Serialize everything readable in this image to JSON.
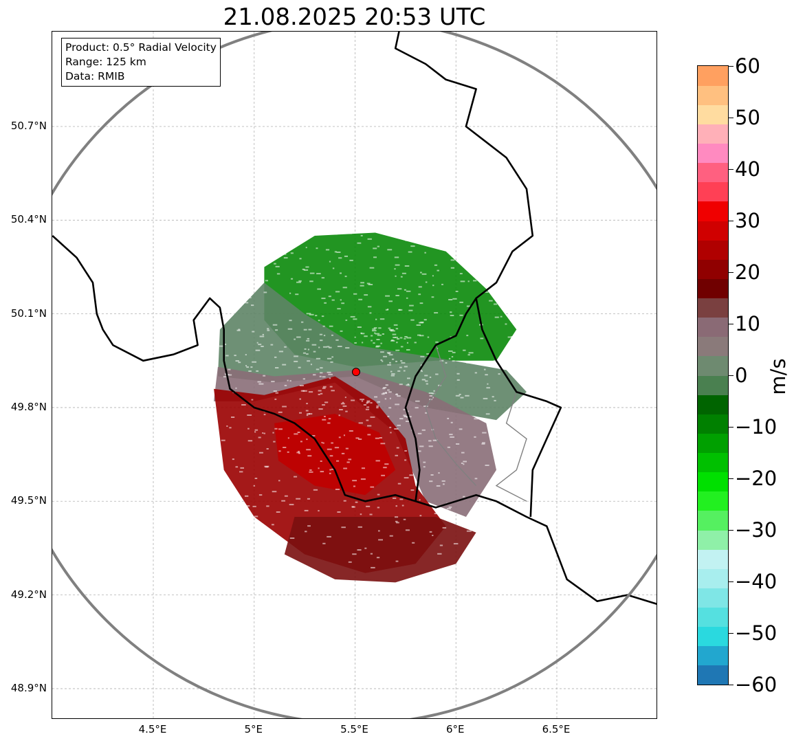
{
  "map": {
    "title": "21.08.2025 20:53 UTC",
    "info": {
      "product": "Product: 0.5° Radial Velocity",
      "range": "Range: 125 km",
      "data": "Data: RMIB"
    },
    "radar_site": {
      "lon": 5.505,
      "lat": 49.914
    },
    "range_ring_km": 125,
    "extent": {
      "lon_min": 4.0,
      "lon_max": 7.0,
      "lat_min": 48.8,
      "lat_max": 51.1
    },
    "lat_ticks": [
      {
        "value": 50.7,
        "label": "50.7°N"
      },
      {
        "value": 50.4,
        "label": "50.4°N"
      },
      {
        "value": 50.1,
        "label": "50.1°N"
      },
      {
        "value": 49.8,
        "label": "49.8°N"
      },
      {
        "value": 49.5,
        "label": "49.5°N"
      },
      {
        "value": 49.2,
        "label": "49.2°N"
      },
      {
        "value": 48.9,
        "label": "48.9°N"
      }
    ],
    "lon_ticks": [
      {
        "value": 4.5,
        "label": "4.5°E"
      },
      {
        "value": 5.0,
        "label": "5°E"
      },
      {
        "value": 5.5,
        "label": "5.5°E"
      },
      {
        "value": 6.0,
        "label": "6°E"
      },
      {
        "value": 6.5,
        "label": "6.5°E"
      }
    ],
    "colors": {
      "ring": "#808080",
      "border": "#000000",
      "province_border": "#808080",
      "grid": "#b0b0b0",
      "site_marker": "#ff0000"
    },
    "colorbar": {
      "unit": "m/s",
      "min": -60,
      "max": 60,
      "ticks": [
        {
          "value": 60,
          "label": "60"
        },
        {
          "value": 50,
          "label": "50"
        },
        {
          "value": 40,
          "label": "40"
        },
        {
          "value": 30,
          "label": "30"
        },
        {
          "value": 20,
          "label": "20"
        },
        {
          "value": 10,
          "label": "10"
        },
        {
          "value": 0,
          "label": "0"
        },
        {
          "value": -10,
          "label": "−10"
        },
        {
          "value": -20,
          "label": "−20"
        },
        {
          "value": -30,
          "label": "−30"
        },
        {
          "value": -40,
          "label": "−40"
        },
        {
          "value": -50,
          "label": "−50"
        },
        {
          "value": -60,
          "label": "−60"
        }
      ],
      "stops": [
        "#1f77b4",
        "#22a7cf",
        "#2ad9df",
        "#55e0e0",
        "#7fe6e6",
        "#a8eeee",
        "#c2f2f2",
        "#8ff0a8",
        "#55f060",
        "#22f020",
        "#00e000",
        "#00c000",
        "#00a000",
        "#008000",
        "#006400",
        "#4a8050",
        "#6e8a70",
        "#8a7a7a",
        "#8a6a75",
        "#7a4040",
        "#700000",
        "#900000",
        "#b00000",
        "#d00000",
        "#f00000",
        "#ff4055",
        "#ff6080",
        "#ff8ac0",
        "#ffb0b8",
        "#ffdca0",
        "#ffc080",
        "#ffa060"
      ]
    },
    "echo_regions": [
      {
        "name": "inbound-north",
        "velocity": -12,
        "color": "#0a8a0a",
        "polygon": [
          [
            5.05,
            50.25
          ],
          [
            5.3,
            50.35
          ],
          [
            5.6,
            50.36
          ],
          [
            5.95,
            50.3
          ],
          [
            6.15,
            50.18
          ],
          [
            6.3,
            50.05
          ],
          [
            6.2,
            49.95
          ],
          [
            5.9,
            49.95
          ],
          [
            5.5,
            49.93
          ],
          [
            5.2,
            49.97
          ],
          [
            5.05,
            50.08
          ]
        ]
      },
      {
        "name": "near-zero-band",
        "velocity": -2,
        "color": "#5e8466",
        "polygon": [
          [
            4.83,
            50.05
          ],
          [
            5.05,
            50.2
          ],
          [
            5.25,
            50.1
          ],
          [
            5.5,
            50.0
          ],
          [
            5.9,
            49.96
          ],
          [
            6.25,
            49.92
          ],
          [
            6.35,
            49.85
          ],
          [
            6.2,
            49.76
          ],
          [
            5.85,
            49.8
          ],
          [
            5.5,
            49.9
          ],
          [
            5.1,
            49.88
          ],
          [
            4.82,
            49.9
          ]
        ]
      },
      {
        "name": "zero-mauve",
        "velocity": 3,
        "color": "#8a6e78",
        "polygon": [
          [
            4.82,
            49.93
          ],
          [
            5.1,
            49.9
          ],
          [
            5.5,
            49.92
          ],
          [
            5.85,
            49.85
          ],
          [
            6.15,
            49.75
          ],
          [
            6.2,
            49.6
          ],
          [
            6.05,
            49.45
          ],
          [
            5.85,
            49.5
          ],
          [
            5.7,
            49.72
          ],
          [
            5.4,
            49.88
          ],
          [
            5.0,
            49.82
          ],
          [
            4.8,
            49.82
          ]
        ]
      },
      {
        "name": "outbound-south",
        "velocity": 18,
        "color": "#9a0000",
        "polygon": [
          [
            4.8,
            49.86
          ],
          [
            5.05,
            49.84
          ],
          [
            5.4,
            49.9
          ],
          [
            5.6,
            49.82
          ],
          [
            5.75,
            49.7
          ],
          [
            5.8,
            49.55
          ],
          [
            5.95,
            49.42
          ],
          [
            5.8,
            49.3
          ],
          [
            5.55,
            49.27
          ],
          [
            5.25,
            49.33
          ],
          [
            5.0,
            49.45
          ],
          [
            4.85,
            49.6
          ]
        ]
      },
      {
        "name": "outbound-core",
        "velocity": 24,
        "color": "#c00000",
        "polygon": [
          [
            5.1,
            49.75
          ],
          [
            5.4,
            49.78
          ],
          [
            5.62,
            49.72
          ],
          [
            5.7,
            49.6
          ],
          [
            5.55,
            49.52
          ],
          [
            5.3,
            49.55
          ],
          [
            5.12,
            49.63
          ]
        ]
      },
      {
        "name": "far-south-tail",
        "velocity": 12,
        "color": "#7a1010",
        "polygon": [
          [
            5.2,
            49.45
          ],
          [
            5.5,
            49.45
          ],
          [
            5.9,
            49.45
          ],
          [
            6.1,
            49.4
          ],
          [
            6.0,
            49.3
          ],
          [
            5.7,
            49.24
          ],
          [
            5.4,
            49.25
          ],
          [
            5.15,
            49.33
          ]
        ]
      }
    ],
    "borders": [
      {
        "name": "border-west",
        "path": [
          [
            4.0,
            50.35
          ],
          [
            4.12,
            50.28
          ],
          [
            4.2,
            50.2
          ],
          [
            4.22,
            50.1
          ],
          [
            4.25,
            50.05
          ],
          [
            4.3,
            50.0
          ],
          [
            4.45,
            49.95
          ],
          [
            4.6,
            49.97
          ],
          [
            4.72,
            50.0
          ],
          [
            4.7,
            50.08
          ],
          [
            4.78,
            50.15
          ],
          [
            4.83,
            50.12
          ],
          [
            4.85,
            50.05
          ],
          [
            4.85,
            49.95
          ],
          [
            4.88,
            49.86
          ],
          [
            5.0,
            49.8
          ],
          [
            5.1,
            49.78
          ],
          [
            5.2,
            49.75
          ],
          [
            5.3,
            49.7
          ],
          [
            5.4,
            49.6
          ],
          [
            5.45,
            49.52
          ],
          [
            5.55,
            49.5
          ],
          [
            5.7,
            49.52
          ],
          [
            5.8,
            49.5
          ],
          [
            5.9,
            49.48
          ],
          [
            6.1,
            49.52
          ],
          [
            6.2,
            49.5
          ],
          [
            6.35,
            49.45
          ],
          [
            6.45,
            49.42
          ],
          [
            6.55,
            49.25
          ],
          [
            6.7,
            49.18
          ],
          [
            6.85,
            49.2
          ],
          [
            7.0,
            49.17
          ]
        ]
      },
      {
        "name": "border-east",
        "path": [
          [
            5.75,
            51.1
          ],
          [
            5.7,
            50.95
          ],
          [
            5.85,
            50.9
          ],
          [
            5.95,
            50.85
          ],
          [
            6.1,
            50.82
          ],
          [
            6.05,
            50.7
          ],
          [
            6.15,
            50.65
          ],
          [
            6.25,
            50.6
          ],
          [
            6.35,
            50.5
          ],
          [
            6.38,
            50.35
          ],
          [
            6.28,
            50.3
          ],
          [
            6.2,
            50.2
          ],
          [
            6.1,
            50.15
          ],
          [
            6.05,
            50.1
          ],
          [
            6.0,
            50.03
          ],
          [
            5.9,
            50.0
          ],
          [
            5.8,
            49.9
          ],
          [
            5.75,
            49.8
          ],
          [
            5.8,
            49.7
          ],
          [
            5.82,
            49.6
          ],
          [
            5.8,
            49.5
          ]
        ]
      },
      {
        "name": "border-lux-east",
        "path": [
          [
            6.1,
            50.15
          ],
          [
            6.13,
            50.05
          ],
          [
            6.2,
            49.95
          ],
          [
            6.3,
            49.85
          ],
          [
            6.45,
            49.82
          ],
          [
            6.52,
            49.8
          ],
          [
            6.45,
            49.7
          ],
          [
            6.38,
            49.6
          ],
          [
            6.37,
            49.45
          ]
        ]
      }
    ],
    "province_borders": [
      {
        "name": "province-lux",
        "path": [
          [
            5.9,
            50.0
          ],
          [
            5.95,
            49.9
          ],
          [
            5.85,
            49.8
          ],
          [
            5.9,
            49.7
          ],
          [
            6.0,
            49.62
          ],
          [
            6.1,
            49.55
          ]
        ]
      },
      {
        "name": "province-german",
        "path": [
          [
            6.3,
            49.85
          ],
          [
            6.25,
            49.75
          ],
          [
            6.35,
            49.7
          ],
          [
            6.3,
            49.6
          ],
          [
            6.2,
            49.55
          ],
          [
            6.35,
            49.5
          ]
        ]
      }
    ]
  }
}
